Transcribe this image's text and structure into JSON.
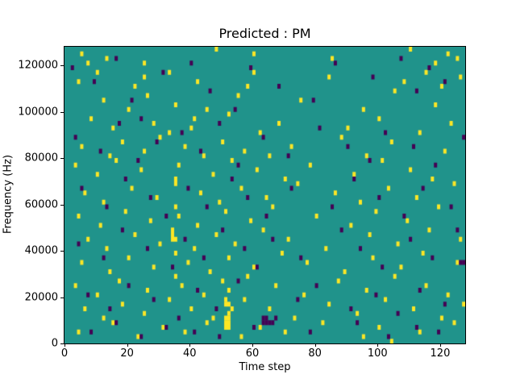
{
  "figure": {
    "title": "Predicted : PM",
    "xlabel": "Time step",
    "ylabel": "Frequency (Hz)"
  },
  "chart_data": {
    "type": "heatmap",
    "title": "Predicted : PM",
    "xlabel": "Time step",
    "ylabel": "Frequency (Hz)",
    "xlim": [
      0,
      128
    ],
    "ylim": [
      0,
      128000
    ],
    "x_ticks": [
      0,
      20,
      40,
      60,
      80,
      100,
      120
    ],
    "y_ticks": [
      0,
      20000,
      40000,
      60000,
      80000,
      100000,
      120000
    ],
    "grid": false,
    "legend": "none",
    "colormap": "viridis",
    "cell_size": {
      "x": 1,
      "y": 2000
    },
    "colors": {
      "background": "#20938b",
      "high": "#fde725",
      "low": "#440154",
      "text": "#000000"
    },
    "high_cells": [
      [
        5,
        124000
      ],
      [
        13,
        122000
      ],
      [
        25,
        120000
      ],
      [
        48,
        126000
      ],
      [
        60,
        124000
      ],
      [
        85,
        122000
      ],
      [
        110,
        126000
      ],
      [
        118,
        120000
      ],
      [
        122,
        124000
      ],
      [
        125,
        122000
      ],
      [
        7,
        120000
      ],
      [
        4,
        112000
      ],
      [
        10,
        116000
      ],
      [
        22,
        110000
      ],
      [
        25,
        114000
      ],
      [
        33,
        116000
      ],
      [
        42,
        112000
      ],
      [
        58,
        110000
      ],
      [
        60,
        116000
      ],
      [
        84,
        114000
      ],
      [
        108,
        112000
      ],
      [
        115,
        116000
      ],
      [
        120,
        110000
      ],
      [
        126,
        114000
      ],
      [
        12,
        104000
      ],
      [
        20,
        100000
      ],
      [
        26,
        106000
      ],
      [
        35,
        102000
      ],
      [
        45,
        100000
      ],
      [
        55,
        106000
      ],
      [
        75,
        104000
      ],
      [
        95,
        100000
      ],
      [
        105,
        108000
      ],
      [
        118,
        102000
      ],
      [
        8,
        96000
      ],
      [
        15,
        92000
      ],
      [
        28,
        94000
      ],
      [
        33,
        90000
      ],
      [
        40,
        92000
      ],
      [
        41,
        96000
      ],
      [
        52,
        98000
      ],
      [
        62,
        90000
      ],
      [
        68,
        94000
      ],
      [
        90,
        92000
      ],
      [
        100,
        96000
      ],
      [
        113,
        90000
      ],
      [
        123,
        94000
      ],
      [
        5,
        84000
      ],
      [
        14,
        80000
      ],
      [
        18,
        86000
      ],
      [
        25,
        82000
      ],
      [
        30,
        88000
      ],
      [
        38,
        84000
      ],
      [
        44,
        80000
      ],
      [
        50,
        86000
      ],
      [
        57,
        82000
      ],
      [
        65,
        80000
      ],
      [
        72,
        84000
      ],
      [
        88,
        88000
      ],
      [
        96,
        80000
      ],
      [
        104,
        86000
      ],
      [
        121,
        82000
      ],
      [
        3,
        76000
      ],
      [
        10,
        72000
      ],
      [
        16,
        78000
      ],
      [
        24,
        74000
      ],
      [
        35,
        70000
      ],
      [
        36,
        76000
      ],
      [
        47,
        72000
      ],
      [
        53,
        78000
      ],
      [
        61,
        74000
      ],
      [
        70,
        70000
      ],
      [
        78,
        76000
      ],
      [
        92,
        72000
      ],
      [
        101,
        78000
      ],
      [
        110,
        74000
      ],
      [
        117,
        70000
      ],
      [
        6,
        64000
      ],
      [
        12,
        60000
      ],
      [
        21,
        66000
      ],
      [
        29,
        62000
      ],
      [
        35,
        68000
      ],
      [
        43,
        64000
      ],
      [
        49,
        60000
      ],
      [
        56,
        66000
      ],
      [
        64,
        62000
      ],
      [
        74,
        68000
      ],
      [
        86,
        64000
      ],
      [
        94,
        60000
      ],
      [
        103,
        66000
      ],
      [
        112,
        62000
      ],
      [
        124,
        68000
      ],
      [
        4,
        54000
      ],
      [
        11,
        50000
      ],
      [
        19,
        56000
      ],
      [
        27,
        52000
      ],
      [
        35,
        58000
      ],
      [
        36,
        54000
      ],
      [
        42,
        50000
      ],
      [
        51,
        56000
      ],
      [
        59,
        52000
      ],
      [
        66,
        58000
      ],
      [
        80,
        54000
      ],
      [
        91,
        50000
      ],
      [
        99,
        56000
      ],
      [
        109,
        52000
      ],
      [
        119,
        58000
      ],
      [
        7,
        44000
      ],
      [
        13,
        40000
      ],
      [
        22,
        46000
      ],
      [
        30,
        42000
      ],
      [
        34,
        48000
      ],
      [
        34,
        46000
      ],
      [
        34,
        44000
      ],
      [
        35,
        44000
      ],
      [
        41,
        40000
      ],
      [
        48,
        46000
      ],
      [
        54,
        42000
      ],
      [
        63,
        48000
      ],
      [
        71,
        44000
      ],
      [
        83,
        40000
      ],
      [
        97,
        46000
      ],
      [
        106,
        42000
      ],
      [
        116,
        48000
      ],
      [
        126,
        44000
      ],
      [
        5,
        34000
      ],
      [
        14,
        30000
      ],
      [
        20,
        36000
      ],
      [
        28,
        32000
      ],
      [
        35,
        38000
      ],
      [
        39,
        34000
      ],
      [
        46,
        30000
      ],
      [
        52,
        36000
      ],
      [
        60,
        32000
      ],
      [
        69,
        38000
      ],
      [
        77,
        34000
      ],
      [
        89,
        30000
      ],
      [
        98,
        36000
      ],
      [
        107,
        32000
      ],
      [
        114,
        38000
      ],
      [
        125,
        34000
      ],
      [
        3,
        24000
      ],
      [
        10,
        20000
      ],
      [
        17,
        26000
      ],
      [
        26,
        22000
      ],
      [
        35,
        28000
      ],
      [
        37,
        24000
      ],
      [
        44,
        20000
      ],
      [
        50,
        26000
      ],
      [
        52,
        22000
      ],
      [
        58,
        28000
      ],
      [
        67,
        24000
      ],
      [
        76,
        20000
      ],
      [
        87,
        26000
      ],
      [
        96,
        22000
      ],
      [
        105,
        28000
      ],
      [
        115,
        24000
      ],
      [
        122,
        20000
      ],
      [
        6,
        14000
      ],
      [
        12,
        10000
      ],
      [
        18,
        16000
      ],
      [
        25,
        12000
      ],
      [
        33,
        18000
      ],
      [
        40,
        14000
      ],
      [
        47,
        10000
      ],
      [
        51,
        16000
      ],
      [
        51,
        18000
      ],
      [
        52,
        16000
      ],
      [
        52,
        12000
      ],
      [
        51,
        10000
      ],
      [
        52,
        10000
      ],
      [
        53,
        14000
      ],
      [
        57,
        18000
      ],
      [
        65,
        14000
      ],
      [
        73,
        10000
      ],
      [
        84,
        16000
      ],
      [
        93,
        12000
      ],
      [
        102,
        18000
      ],
      [
        111,
        14000
      ],
      [
        120,
        10000
      ],
      [
        127,
        16000
      ],
      [
        4,
        4000
      ],
      [
        15,
        8000
      ],
      [
        23,
        2000
      ],
      [
        31,
        6000
      ],
      [
        38,
        4000
      ],
      [
        45,
        8000
      ],
      [
        51,
        6000
      ],
      [
        51,
        8000
      ],
      [
        52,
        8000
      ],
      [
        52,
        6000
      ],
      [
        56,
        2000
      ],
      [
        62,
        6000
      ],
      [
        70,
        4000
      ],
      [
        82,
        8000
      ],
      [
        95,
        2000
      ],
      [
        100,
        6000
      ],
      [
        104,
        0
      ],
      [
        113,
        4000
      ],
      [
        124,
        8000
      ]
    ],
    "low_cells": [
      [
        2,
        118000
      ],
      [
        9,
        112000
      ],
      [
        16,
        122000
      ],
      [
        21,
        104000
      ],
      [
        24,
        96000
      ],
      [
        31,
        116000
      ],
      [
        40,
        120000
      ],
      [
        46,
        108000
      ],
      [
        54,
        100000
      ],
      [
        59,
        118000
      ],
      [
        68,
        110000
      ],
      [
        79,
        104000
      ],
      [
        86,
        120000
      ],
      [
        98,
        114000
      ],
      [
        107,
        122000
      ],
      [
        112,
        108000
      ],
      [
        116,
        118000
      ],
      [
        121,
        112000
      ],
      [
        3,
        88000
      ],
      [
        11,
        82000
      ],
      [
        17,
        94000
      ],
      [
        23,
        78000
      ],
      [
        29,
        86000
      ],
      [
        37,
        90000
      ],
      [
        43,
        82000
      ],
      [
        49,
        94000
      ],
      [
        55,
        76000
      ],
      [
        63,
        88000
      ],
      [
        71,
        80000
      ],
      [
        81,
        92000
      ],
      [
        90,
        84000
      ],
      [
        97,
        78000
      ],
      [
        102,
        90000
      ],
      [
        111,
        84000
      ],
      [
        118,
        76000
      ],
      [
        127,
        88000
      ],
      [
        5,
        66000
      ],
      [
        13,
        58000
      ],
      [
        19,
        70000
      ],
      [
        27,
        62000
      ],
      [
        32,
        54000
      ],
      [
        39,
        66000
      ],
      [
        45,
        58000
      ],
      [
        53,
        70000
      ],
      [
        58,
        62000
      ],
      [
        64,
        54000
      ],
      [
        72,
        66000
      ],
      [
        85,
        58000
      ],
      [
        92,
        70000
      ],
      [
        100,
        62000
      ],
      [
        108,
        54000
      ],
      [
        114,
        66000
      ],
      [
        123,
        58000
      ],
      [
        4,
        42000
      ],
      [
        12,
        36000
      ],
      [
        18,
        48000
      ],
      [
        26,
        40000
      ],
      [
        34,
        32000
      ],
      [
        38,
        44000
      ],
      [
        44,
        36000
      ],
      [
        50,
        48000
      ],
      [
        57,
        40000
      ],
      [
        61,
        32000
      ],
      [
        66,
        44000
      ],
      [
        75,
        36000
      ],
      [
        88,
        48000
      ],
      [
        94,
        40000
      ],
      [
        101,
        32000
      ],
      [
        110,
        44000
      ],
      [
        117,
        36000
      ],
      [
        125,
        48000
      ],
      [
        126,
        34000
      ],
      [
        127,
        34000
      ],
      [
        7,
        20000
      ],
      [
        14,
        14000
      ],
      [
        20,
        24000
      ],
      [
        28,
        18000
      ],
      [
        36,
        10000
      ],
      [
        42,
        22000
      ],
      [
        48,
        14000
      ],
      [
        55,
        26000
      ],
      [
        63,
        10000
      ],
      [
        64,
        10000
      ],
      [
        65,
        8000
      ],
      [
        66,
        8000
      ],
      [
        67,
        10000
      ],
      [
        63,
        8000
      ],
      [
        64,
        8000
      ],
      [
        74,
        18000
      ],
      [
        80,
        24000
      ],
      [
        91,
        14000
      ],
      [
        99,
        20000
      ],
      [
        106,
        12000
      ],
      [
        113,
        22000
      ],
      [
        121,
        16000
      ],
      [
        8,
        4000
      ],
      [
        16,
        8000
      ],
      [
        24,
        2000
      ],
      [
        32,
        6000
      ],
      [
        41,
        4000
      ],
      [
        49,
        2000
      ],
      [
        60,
        6000
      ],
      [
        78,
        4000
      ],
      [
        93,
        8000
      ],
      [
        103,
        2000
      ],
      [
        112,
        6000
      ],
      [
        119,
        4000
      ]
    ]
  }
}
